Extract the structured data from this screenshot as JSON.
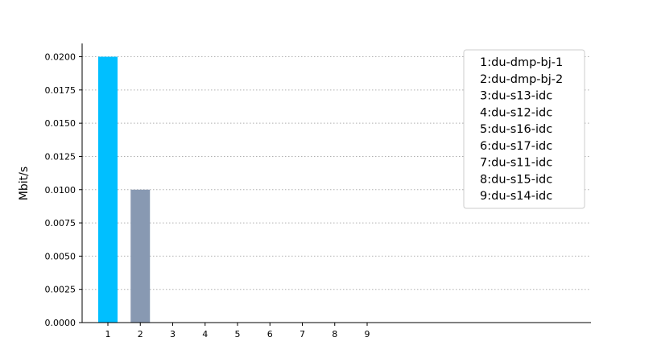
{
  "chart_data": {
    "type": "bar",
    "categories": [
      "1",
      "2",
      "3",
      "4",
      "5",
      "6",
      "7",
      "8",
      "9"
    ],
    "values": [
      0.02,
      0.01,
      0,
      0,
      0,
      0,
      0,
      0,
      0
    ],
    "colors": [
      "#00bfff",
      "#8899b2",
      "#8899b2",
      "#8899b2",
      "#8899b2",
      "#8899b2",
      "#8899b2",
      "#8899b2",
      "#8899b2"
    ],
    "title": "",
    "xlabel": "",
    "ylabel": "Mbit/s",
    "ylim": [
      0,
      0.021
    ],
    "yticks": [
      "0.0000",
      "0.0025",
      "0.0050",
      "0.0075",
      "0.0100",
      "0.0125",
      "0.0150",
      "0.0175",
      "0.0200"
    ],
    "ytick_values": [
      0,
      0.0025,
      0.005,
      0.0075,
      0.01,
      0.0125,
      0.015,
      0.0175,
      0.02
    ],
    "grid": "y-dotted",
    "legend_position": "top-right",
    "legend": [
      "1:du-dmp-bj-1",
      "2:du-dmp-bj-2",
      "3:du-s13-idc",
      "4:du-s12-idc",
      "5:du-s16-idc",
      "6:du-s17-idc",
      "7:du-s11-idc",
      "8:du-s15-idc",
      "9:du-s14-idc"
    ]
  }
}
